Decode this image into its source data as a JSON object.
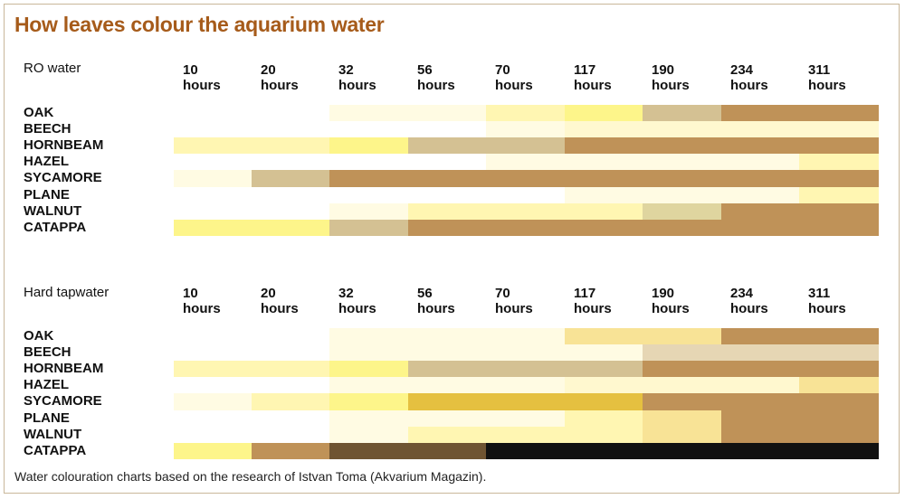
{
  "title": "How leaves colour the aquarium water",
  "footnote": "Water colouration charts based on the research of Istvan Toma (Akvarium Magazin).",
  "color_scale": {
    "W": "#ffffff",
    "C": "#fffbe3",
    "P": "#fff8cf",
    "L": "#fff6b2",
    "Y": "#fdf58a",
    "O": "#f8e396",
    "S": "#d4c193",
    "K": "#e6d6b4",
    "T": "#dfd59f",
    "M": "#e5c040",
    "B": "#bf9258",
    "D": "#6f5432",
    "X": "#111111"
  },
  "chart_data": [
    {
      "type": "heatmap",
      "title": "RO water",
      "columns": [
        {
          "value": "10",
          "unit": "hours"
        },
        {
          "value": "20",
          "unit": "hours"
        },
        {
          "value": "32",
          "unit": "hours"
        },
        {
          "value": "56",
          "unit": "hours"
        },
        {
          "value": "70",
          "unit": "hours"
        },
        {
          "value": "117",
          "unit": "hours"
        },
        {
          "value": "190",
          "unit": "hours"
        },
        {
          "value": "234",
          "unit": "hours"
        },
        {
          "value": "311",
          "unit": "hours"
        }
      ],
      "rows": [
        {
          "name": "OAK",
          "cells": [
            "W",
            "W",
            "C",
            "C",
            "L",
            "Y",
            "S",
            "B",
            "B"
          ]
        },
        {
          "name": "BEECH",
          "cells": [
            "W",
            "W",
            "W",
            "W",
            "C",
            "P",
            "P",
            "P",
            "P"
          ]
        },
        {
          "name": "HORNBEAM",
          "cells": [
            "L",
            "L",
            "Y",
            "S",
            "S",
            "B",
            "B",
            "B",
            "B"
          ]
        },
        {
          "name": "HAZEL",
          "cells": [
            "W",
            "W",
            "W",
            "W",
            "C",
            "C",
            "C",
            "C",
            "L"
          ]
        },
        {
          "name": "SYCAMORE",
          "cells": [
            "C",
            "S",
            "B",
            "B",
            "B",
            "B",
            "B",
            "B",
            "B"
          ]
        },
        {
          "name": "PLANE",
          "cells": [
            "W",
            "W",
            "W",
            "W",
            "W",
            "C",
            "C",
            "C",
            "L"
          ]
        },
        {
          "name": "WALNUT",
          "cells": [
            "W",
            "W",
            "C",
            "L",
            "L",
            "L",
            "T",
            "B",
            "B"
          ]
        },
        {
          "name": "CATAPPA",
          "cells": [
            "Y",
            "Y",
            "S",
            "B",
            "B",
            "B",
            "B",
            "B",
            "B"
          ]
        }
      ]
    },
    {
      "type": "heatmap",
      "title": "Hard tapwater",
      "columns": [
        {
          "value": "10",
          "unit": "hours"
        },
        {
          "value": "20",
          "unit": "hours"
        },
        {
          "value": "32",
          "unit": "hours"
        },
        {
          "value": "56",
          "unit": "hours"
        },
        {
          "value": "70",
          "unit": "hours"
        },
        {
          "value": "117",
          "unit": "hours"
        },
        {
          "value": "190",
          "unit": "hours"
        },
        {
          "value": "234",
          "unit": "hours"
        },
        {
          "value": "311",
          "unit": "hours"
        }
      ],
      "rows": [
        {
          "name": "OAK",
          "cells": [
            "W",
            "W",
            "C",
            "C",
            "C",
            "O",
            "O",
            "B",
            "B"
          ]
        },
        {
          "name": "BEECH",
          "cells": [
            "W",
            "W",
            "C",
            "C",
            "C",
            "C",
            "K",
            "K",
            "K"
          ]
        },
        {
          "name": "HORNBEAM",
          "cells": [
            "L",
            "L",
            "Y",
            "S",
            "S",
            "S",
            "B",
            "B",
            "B"
          ]
        },
        {
          "name": "HAZEL",
          "cells": [
            "W",
            "W",
            "C",
            "C",
            "C",
            "P",
            "P",
            "P",
            "O"
          ]
        },
        {
          "name": "SYCAMORE",
          "cells": [
            "C",
            "L",
            "Y",
            "M",
            "M",
            "M",
            "B",
            "B",
            "B"
          ]
        },
        {
          "name": "PLANE",
          "cells": [
            "W",
            "W",
            "C",
            "C",
            "C",
            "L",
            "O",
            "B",
            "B"
          ]
        },
        {
          "name": "WALNUT",
          "cells": [
            "W",
            "W",
            "C",
            "L",
            "L",
            "L",
            "O",
            "B",
            "B"
          ]
        },
        {
          "name": "CATAPPA",
          "cells": [
            "Y",
            "B",
            "D",
            "D",
            "X",
            "X",
            "X",
            "X",
            "X"
          ]
        }
      ]
    }
  ]
}
